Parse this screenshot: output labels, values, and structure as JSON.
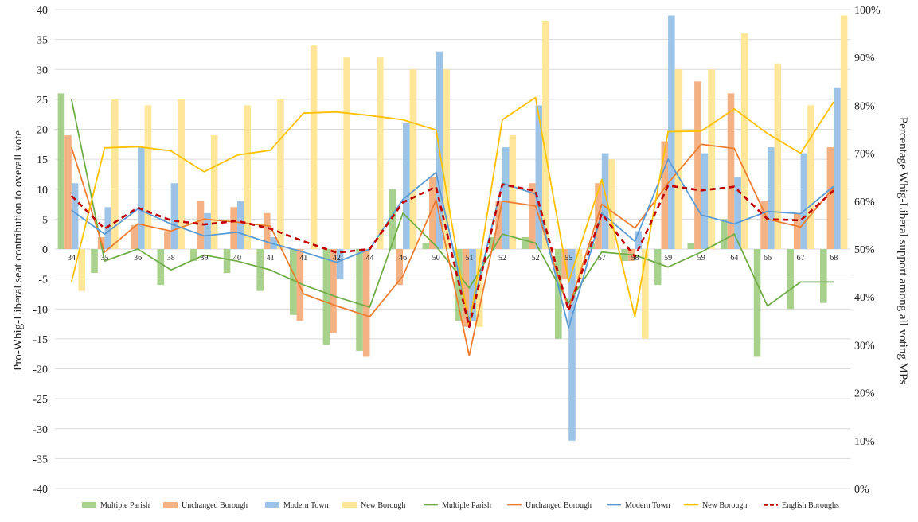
{
  "chart_data": {
    "type": "bar",
    "title": "",
    "categories": [
      "34",
      "35",
      "36",
      "38",
      "39",
      "40",
      "41",
      "41",
      "42",
      "44",
      "46",
      "50",
      "51",
      "52",
      "52",
      "55",
      "57",
      "58",
      "59",
      "59",
      "64",
      "66",
      "67",
      "68"
    ],
    "ylabel": "Pro-Whig-Liberal seat contribution to overall vote",
    "y2label": "Percentage Whig-Liberal support among all voting MPs",
    "ylim": [
      -40,
      40
    ],
    "y2lim": [
      0,
      100
    ],
    "yticks": [
      "40",
      "35",
      "30",
      "25",
      "20",
      "15",
      "10",
      "5",
      "0",
      "-5",
      "-10",
      "-15",
      "-20",
      "-25",
      "-30",
      "-35",
      "-40"
    ],
    "y2ticks": [
      "100%",
      "90%",
      "80%",
      "70%",
      "60%",
      "50%",
      "40%",
      "30%",
      "20%",
      "10%",
      "0%"
    ],
    "grid": "horizontal",
    "legend_position": "bottom",
    "bar_series": [
      {
        "name": "Multiple Parish",
        "color": "#a9d18e",
        "values": [
          26,
          -4,
          0,
          -6,
          -2,
          -4,
          -7,
          -11,
          -16,
          -17,
          10,
          1,
          -12,
          2,
          2,
          -15,
          1,
          -2,
          -6,
          1,
          5,
          -18,
          -10,
          -9
        ]
      },
      {
        "name": "Unchanged Borough",
        "color": "#f4b183",
        "values": [
          19,
          2,
          4,
          3,
          8,
          7,
          6,
          -12,
          -14,
          -18,
          -6,
          12,
          -13,
          8,
          11,
          -5,
          11,
          -2,
          18,
          28,
          26,
          8,
          6,
          17
        ]
      },
      {
        "name": "Modern Town",
        "color": "#9dc3e6",
        "values": [
          11,
          7,
          17,
          11,
          6,
          8,
          2,
          0,
          -5,
          0,
          21,
          33,
          -12,
          17,
          24,
          -32,
          16,
          3,
          39,
          16,
          12,
          17,
          16,
          27
        ]
      },
      {
        "name": "New Borough",
        "color": "#ffe699",
        "values": [
          -7,
          25,
          24,
          25,
          19,
          24,
          25,
          34,
          32,
          32,
          30,
          30,
          -13,
          19,
          38,
          -5,
          15,
          -15,
          30,
          30,
          36,
          31,
          24,
          39
        ]
      }
    ],
    "line_series": [
      {
        "name": "Multiple Parish",
        "color": "#70ad47",
        "values": [
          25,
          -2,
          0,
          -3.5,
          -1,
          -2,
          -3.5,
          -6,
          -8,
          -9.7,
          6,
          0.5,
          -6.5,
          2.5,
          1,
          -9,
          -0.5,
          -1,
          -3,
          -0.5,
          2.5,
          -9.5,
          -5.5,
          -5.5
        ]
      },
      {
        "name": "Unchanged Borough",
        "color": "#ed7d31",
        "values": [
          17,
          -0.5,
          4.2,
          3,
          5,
          4.5,
          3.8,
          -7.5,
          -9.5,
          -11.3,
          -4.5,
          8.2,
          -17.8,
          8,
          7.2,
          -10,
          7.5,
          3.5,
          11,
          17.5,
          16.8,
          5,
          3.7,
          10.3
        ]
      },
      {
        "name": "Modern Town",
        "color": "#5b9bd5",
        "values": [
          6.5,
          2.5,
          6.7,
          4.2,
          2.2,
          2.8,
          1,
          -0.5,
          -2.2,
          0,
          8.3,
          12.8,
          -12,
          11,
          9.2,
          -13.2,
          6,
          1.3,
          15,
          5.7,
          4.2,
          6.3,
          5.9,
          10.5
        ]
      },
      {
        "name": "New Borough",
        "color": "#ffc000",
        "values": [
          -5.5,
          16.9,
          17.1,
          16.4,
          12.9,
          15.7,
          16.5,
          22.7,
          22.9,
          22.3,
          21.6,
          19.9,
          -13,
          21.6,
          25.3,
          -5.5,
          11.6,
          -11.3,
          19.6,
          19.7,
          23.4,
          19.3,
          16,
          24.6
        ]
      },
      {
        "name": "English Boroughs",
        "color": "#c00000",
        "dashed": true,
        "values": [
          8.9,
          3.4,
          6.9,
          4.8,
          4.1,
          4.7,
          3.4,
          1.3,
          -0.6,
          0,
          7.8,
          10.4,
          -13,
          10.8,
          9.7,
          -10.3,
          5.9,
          -1.3,
          10.6,
          9.8,
          10.4,
          5,
          4.8,
          9.8
        ]
      }
    ],
    "legend": [
      {
        "label": "Multiple Parish",
        "kind": "bar",
        "color": "#a9d18e"
      },
      {
        "label": "Unchanged Borough",
        "kind": "bar",
        "color": "#f4b183"
      },
      {
        "label": "Modern Town",
        "kind": "bar",
        "color": "#9dc3e6"
      },
      {
        "label": "New Borough",
        "kind": "bar",
        "color": "#ffe699"
      },
      {
        "label": "Multiple Parish",
        "kind": "line",
        "color": "#70ad47"
      },
      {
        "label": "Unchanged Borough",
        "kind": "line",
        "color": "#ed7d31"
      },
      {
        "label": "Modern Town",
        "kind": "line",
        "color": "#5b9bd5"
      },
      {
        "label": "New Borough",
        "kind": "line",
        "color": "#ffc000"
      },
      {
        "label": "English Boroughs",
        "kind": "dashed",
        "color": "#c00000"
      }
    ]
  }
}
